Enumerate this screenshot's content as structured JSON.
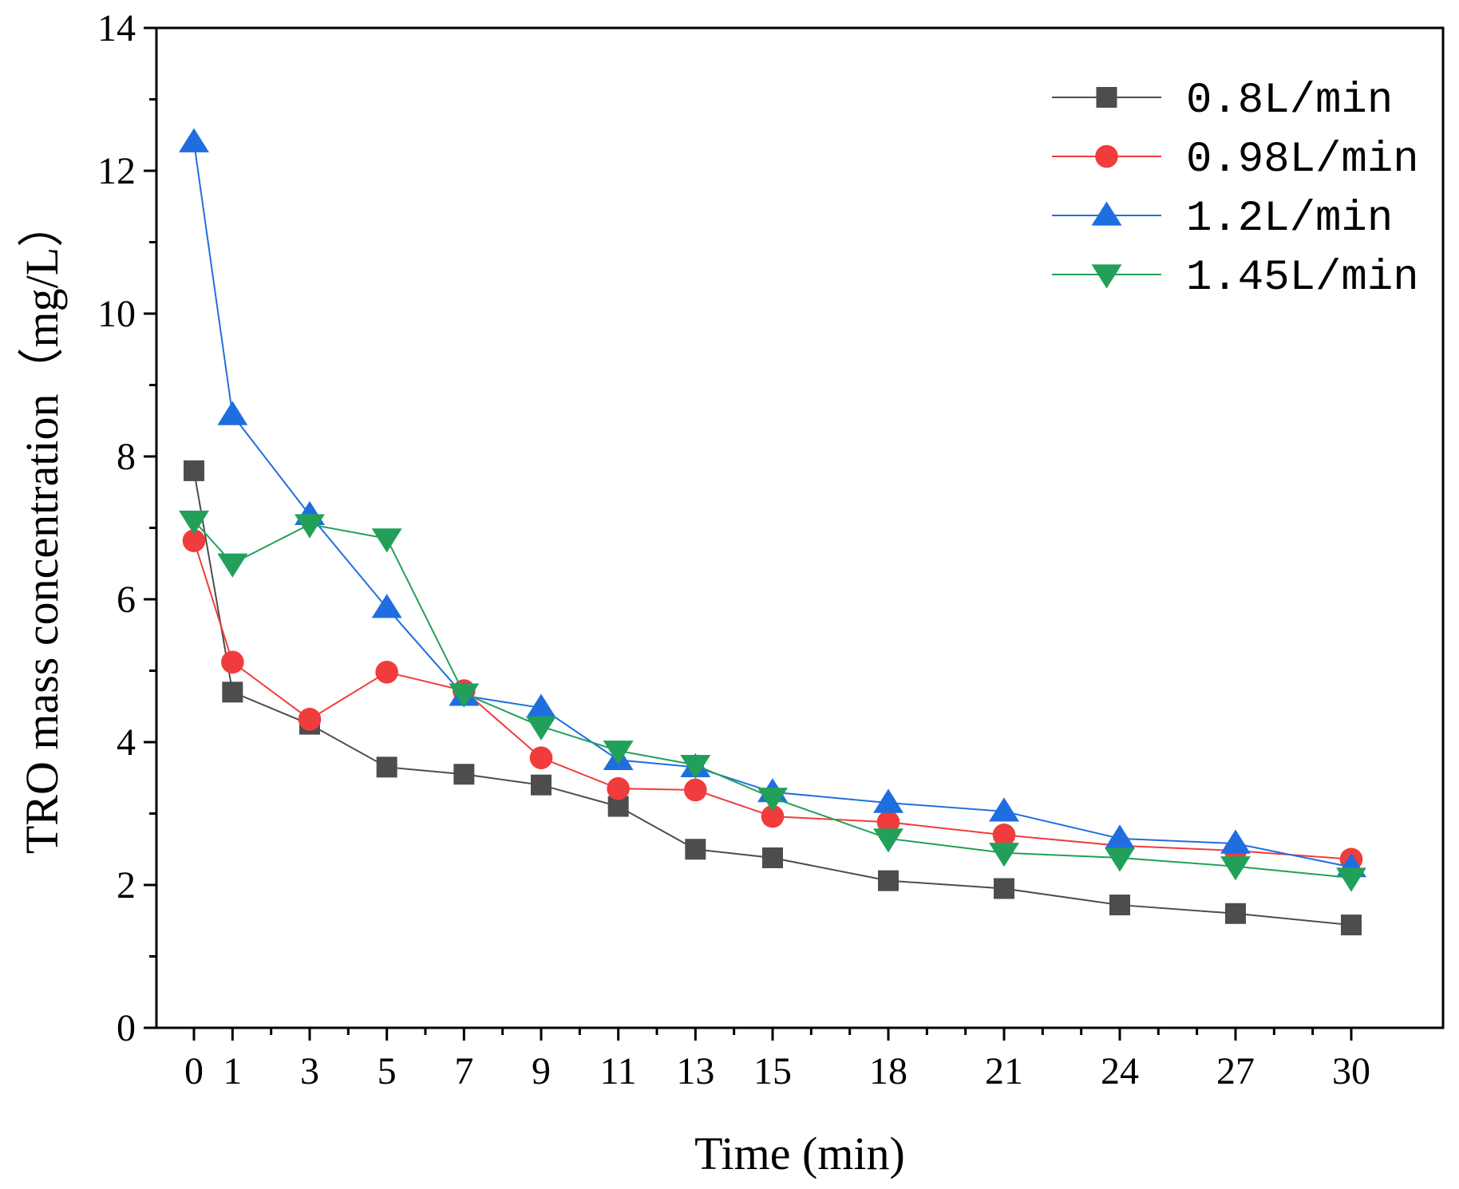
{
  "chart_data": {
    "type": "line",
    "title": "",
    "xlabel": "Time (min)",
    "ylabel": "TRO mass concentration（mg/L）",
    "x": [
      0,
      1,
      3,
      5,
      7,
      9,
      11,
      13,
      15,
      18,
      21,
      24,
      27,
      30
    ],
    "xticks": [
      "0",
      "1",
      "3",
      "5",
      "7",
      "9",
      "11",
      "13",
      "15",
      "18",
      "21",
      "24",
      "27",
      "30"
    ],
    "ylim": [
      0,
      14
    ],
    "yticks": [
      "0",
      "2",
      "4",
      "6",
      "8",
      "10",
      "12",
      "14"
    ],
    "legend_position": "top-right",
    "grid": false,
    "series": [
      {
        "name": "0.8L/min",
        "color": "#4d4d4d",
        "marker": "square",
        "values": [
          7.8,
          4.7,
          4.25,
          3.65,
          3.55,
          3.4,
          3.1,
          2.5,
          2.38,
          2.06,
          1.95,
          1.72,
          1.6,
          1.44
        ]
      },
      {
        "name": "0.98L/min",
        "color": "#f03c3c",
        "marker": "circle",
        "values": [
          6.82,
          5.12,
          4.32,
          4.98,
          4.72,
          3.78,
          3.35,
          3.33,
          2.96,
          2.88,
          2.7,
          2.55,
          2.48,
          2.36
        ]
      },
      {
        "name": "1.2L/min",
        "color": "#1f6ee0",
        "marker": "triangle-up",
        "values": [
          12.4,
          8.58,
          7.18,
          5.88,
          4.65,
          4.48,
          3.75,
          3.65,
          3.3,
          3.15,
          3.03,
          2.65,
          2.58,
          2.25
        ]
      },
      {
        "name": "1.45L/min",
        "color": "#22a05a",
        "marker": "triangle-down",
        "values": [
          7.1,
          6.5,
          7.05,
          6.85,
          4.68,
          4.22,
          3.88,
          3.68,
          3.22,
          2.65,
          2.45,
          2.38,
          2.26,
          2.1
        ]
      }
    ]
  }
}
